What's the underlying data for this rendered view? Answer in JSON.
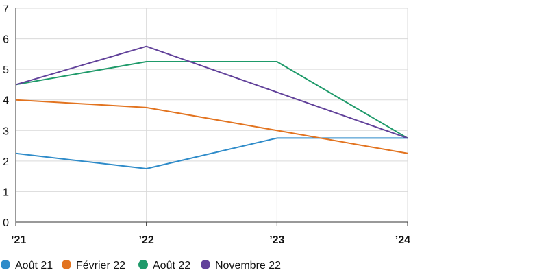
{
  "chart_data": {
    "type": "line",
    "categories": [
      "’21",
      "’22",
      "’23",
      "’24"
    ],
    "ylim": [
      0,
      7
    ],
    "yticks": [
      0,
      1,
      2,
      3,
      4,
      5,
      6,
      7
    ],
    "grid": true,
    "legend_position": "bottom-left",
    "series": [
      {
        "name": "Août 21",
        "color": "#2E8BC9",
        "values": [
          2.25,
          1.75,
          2.75,
          2.75
        ]
      },
      {
        "name": "Février 22",
        "color": "#E2731F",
        "values": [
          4.0,
          3.75,
          3.0,
          2.25
        ]
      },
      {
        "name": "Août 22",
        "color": "#1F9A6A",
        "values": [
          4.5,
          5.25,
          5.25,
          2.75
        ]
      },
      {
        "name": "Novembre 22",
        "color": "#61419A",
        "values": [
          4.5,
          5.75,
          4.25,
          2.75
        ]
      }
    ]
  }
}
